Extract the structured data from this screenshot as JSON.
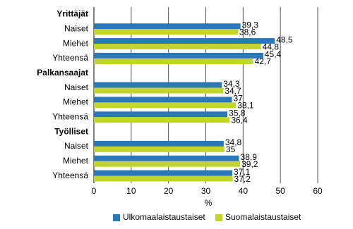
{
  "chart_data": {
    "type": "hbar",
    "x_label": "%",
    "categories": [
      "Yrittäjät",
      "Naiset",
      "Miehet",
      "Yhteensä",
      "Palkansaajat",
      "Naiset",
      "Miehet",
      "Yhteensä",
      "Työlliset",
      "Naiset",
      "Miehet",
      "Yhteensä"
    ],
    "series": [
      {
        "name": "Ulkomaalaistaustaiset",
        "color": "#2a78b8",
        "values": [
          null,
          39.3,
          48.5,
          45.4,
          null,
          34.3,
          37,
          35.8,
          null,
          34.8,
          38.9,
          37.1
        ],
        "value_labels": [
          null,
          "39,3",
          "48,5",
          "45,4",
          null,
          "34,3",
          "37",
          "35,8",
          null,
          "34,8",
          "38,9",
          "37,1"
        ]
      },
      {
        "name": "Suomalaistaustaiset",
        "color": "#c2d52c",
        "values": [
          null,
          38.6,
          44.8,
          42.7,
          null,
          34.7,
          38.1,
          36.4,
          null,
          35,
          39.2,
          37.2
        ],
        "value_labels": [
          null,
          "38,6",
          "44,8",
          "42,7",
          null,
          "34,7",
          "38,1",
          "36,4",
          null,
          "35",
          "39,2",
          "37,2"
        ]
      }
    ],
    "xlim": [
      0,
      60
    ],
    "xticks": [
      0,
      10,
      20,
      30,
      40,
      50,
      60
    ],
    "grid": true
  }
}
